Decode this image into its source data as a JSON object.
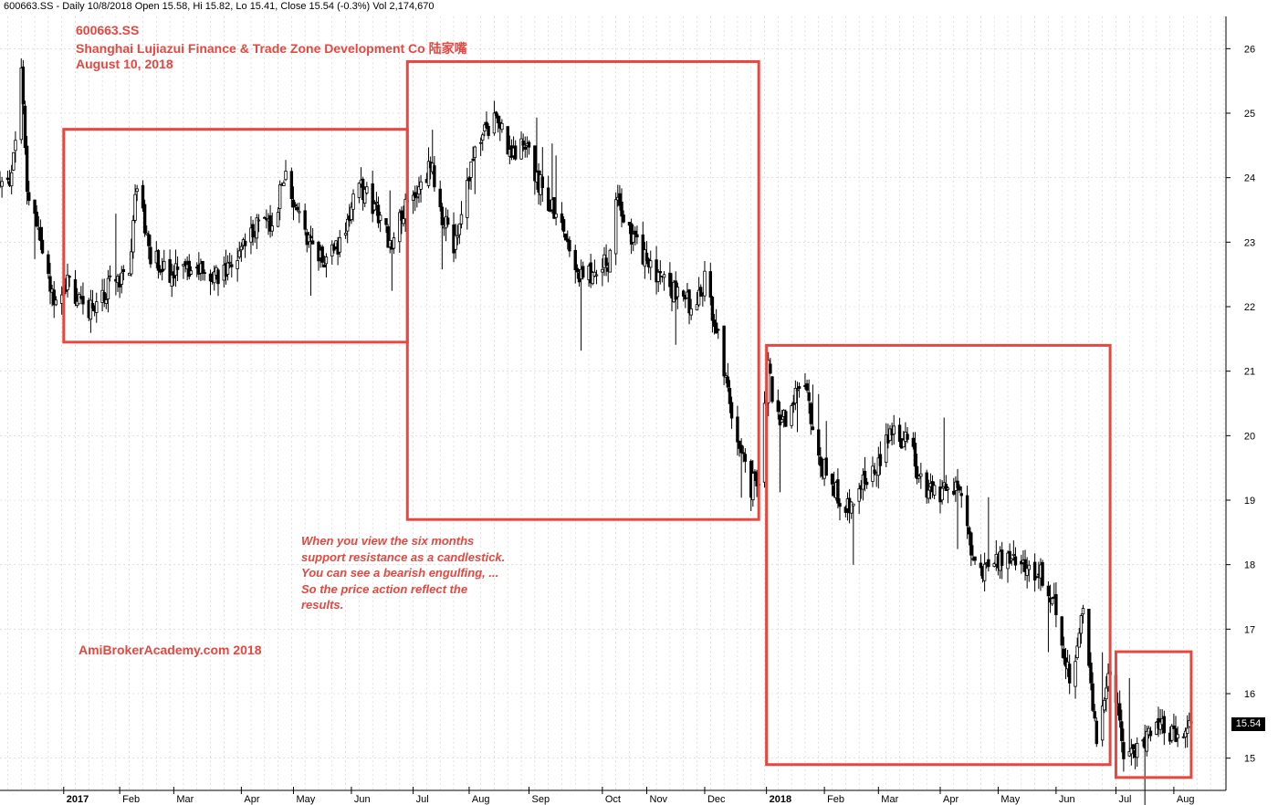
{
  "header": {
    "text": "600663.SS - Daily 10/8/2018 Open 15.58, Hi 15.82, Lo 15.41, Close 15.54 (-0.3%) Vol 2,174,670"
  },
  "overlay": {
    "ticker": "600663.SS",
    "company": "Shanghai Lujiazui Finance & Trade Zone Development Co  陆家嘴",
    "date": "August 10, 2018",
    "watermark": "AmiBrokerAcademy.com  2018",
    "note_lines": [
      "When you view the six months",
      "support resistance as a candlestick.",
      "You can see a bearish engulfing, ...",
      "So the price action reflect the",
      "results."
    ],
    "price_tag": "15.54"
  },
  "colors": {
    "annotation": "#e8463f",
    "candle": "#000000",
    "grid": "#cfcfcf",
    "background": "#ffffff"
  },
  "chart_data": {
    "type": "candlestick",
    "x_range": [
      "2016-12-01",
      "2018-08-28"
    ],
    "y_range": [
      14.5,
      26.5
    ],
    "y_ticks": [
      15,
      16,
      17,
      18,
      19,
      20,
      21,
      22,
      23,
      24,
      25,
      26
    ],
    "y_axis_position": "right",
    "grid": true,
    "x_tick_labels": [
      {
        "label": "2017",
        "date": "2017-01-03",
        "bold": true
      },
      {
        "label": "Feb",
        "date": "2017-02-01"
      },
      {
        "label": "Mar",
        "date": "2017-03-01"
      },
      {
        "label": "Apr",
        "date": "2017-04-05"
      },
      {
        "label": "May",
        "date": "2017-05-02"
      },
      {
        "label": "Jun",
        "date": "2017-06-01"
      },
      {
        "label": "Jul",
        "date": "2017-07-03"
      },
      {
        "label": "Aug",
        "date": "2017-08-01"
      },
      {
        "label": "Sep",
        "date": "2017-09-01"
      },
      {
        "label": "Oct",
        "date": "2017-10-09"
      },
      {
        "label": "Nov",
        "date": "2017-11-01"
      },
      {
        "label": "Dec",
        "date": "2017-12-01"
      },
      {
        "label": "2018",
        "date": "2018-01-02",
        "bold": true
      },
      {
        "label": "Feb",
        "date": "2018-02-01"
      },
      {
        "label": "Mar",
        "date": "2018-03-01"
      },
      {
        "label": "Apr",
        "date": "2018-04-02"
      },
      {
        "label": "May",
        "date": "2018-05-02"
      },
      {
        "label": "Jun",
        "date": "2018-06-01"
      },
      {
        "label": "Jul",
        "date": "2018-07-02"
      },
      {
        "label": "Aug",
        "date": "2018-08-01"
      }
    ],
    "last_close": 15.54,
    "key_points": [
      {
        "date": "2016-12-01",
        "close": 23.85
      },
      {
        "date": "2016-12-06",
        "close": 23.85
      },
      {
        "date": "2016-12-12",
        "close": 25.6
      },
      {
        "date": "2016-12-15",
        "close": 23.9
      },
      {
        "date": "2016-12-22",
        "close": 22.9
      },
      {
        "date": "2016-12-29",
        "close": 22.2
      },
      {
        "date": "2017-01-06",
        "close": 22.4
      },
      {
        "date": "2017-01-13",
        "close": 21.9
      },
      {
        "date": "2017-01-20",
        "close": 22.1
      },
      {
        "date": "2017-01-26",
        "close": 22.3
      },
      {
        "date": "2017-02-06",
        "close": 22.5
      },
      {
        "date": "2017-02-10",
        "close": 24.0
      },
      {
        "date": "2017-02-17",
        "close": 22.8
      },
      {
        "date": "2017-02-28",
        "close": 22.5
      },
      {
        "date": "2017-03-10",
        "close": 22.6
      },
      {
        "date": "2017-03-20",
        "close": 22.4
      },
      {
        "date": "2017-03-31",
        "close": 22.6
      },
      {
        "date": "2017-04-14",
        "close": 23.3
      },
      {
        "date": "2017-04-21",
        "close": 23.2
      },
      {
        "date": "2017-04-28",
        "close": 24.2
      },
      {
        "date": "2017-05-05",
        "close": 23.3
      },
      {
        "date": "2017-05-15",
        "close": 22.7
      },
      {
        "date": "2017-05-26",
        "close": 22.9
      },
      {
        "date": "2017-06-05",
        "close": 23.9
      },
      {
        "date": "2017-06-15",
        "close": 23.4
      },
      {
        "date": "2017-06-22",
        "close": 22.9
      },
      {
        "date": "2017-06-30",
        "close": 23.7
      },
      {
        "date": "2017-07-07",
        "close": 23.8
      },
      {
        "date": "2017-07-12",
        "close": 24.2
      },
      {
        "date": "2017-07-18",
        "close": 23.4
      },
      {
        "date": "2017-07-24",
        "close": 22.9
      },
      {
        "date": "2017-07-31",
        "close": 24.0
      },
      {
        "date": "2017-08-07",
        "close": 24.6
      },
      {
        "date": "2017-08-14",
        "close": 24.9
      },
      {
        "date": "2017-08-21",
        "close": 24.5
      },
      {
        "date": "2017-08-31",
        "close": 24.4
      },
      {
        "date": "2017-09-08",
        "close": 23.8
      },
      {
        "date": "2017-09-18",
        "close": 23.2
      },
      {
        "date": "2017-09-29",
        "close": 22.4
      },
      {
        "date": "2017-10-12",
        "close": 22.7
      },
      {
        "date": "2017-10-16",
        "close": 23.7
      },
      {
        "date": "2017-10-24",
        "close": 23.1
      },
      {
        "date": "2017-11-03",
        "close": 22.6
      },
      {
        "date": "2017-11-14",
        "close": 22.3
      },
      {
        "date": "2017-11-24",
        "close": 22.0
      },
      {
        "date": "2017-12-01",
        "close": 22.4
      },
      {
        "date": "2017-12-06",
        "close": 21.8
      },
      {
        "date": "2017-12-12",
        "close": 20.8
      },
      {
        "date": "2017-12-18",
        "close": 19.9
      },
      {
        "date": "2017-12-25",
        "close": 19.2
      },
      {
        "date": "2017-12-29",
        "close": 19.4
      },
      {
        "date": "2018-01-03",
        "close": 21.0
      },
      {
        "date": "2018-01-09",
        "close": 20.1
      },
      {
        "date": "2018-01-16",
        "close": 20.6
      },
      {
        "date": "2018-01-23",
        "close": 20.6
      },
      {
        "date": "2018-01-30",
        "close": 19.6
      },
      {
        "date": "2018-02-07",
        "close": 19.1
      },
      {
        "date": "2018-02-12",
        "close": 18.9
      },
      {
        "date": "2018-02-26",
        "close": 19.4
      },
      {
        "date": "2018-03-07",
        "close": 20.0
      },
      {
        "date": "2018-03-16",
        "close": 19.9
      },
      {
        "date": "2018-03-26",
        "close": 19.1
      },
      {
        "date": "2018-04-04",
        "close": 19.1
      },
      {
        "date": "2018-04-12",
        "close": 19.2
      },
      {
        "date": "2018-04-20",
        "close": 18.0
      },
      {
        "date": "2018-04-27",
        "close": 17.9
      },
      {
        "date": "2018-05-07",
        "close": 18.2
      },
      {
        "date": "2018-05-16",
        "close": 18.0
      },
      {
        "date": "2018-05-25",
        "close": 17.8
      },
      {
        "date": "2018-06-01",
        "close": 17.3
      },
      {
        "date": "2018-06-08",
        "close": 16.2
      },
      {
        "date": "2018-06-15",
        "close": 17.2
      },
      {
        "date": "2018-06-22",
        "close": 15.3
      },
      {
        "date": "2018-06-29",
        "close": 16.5
      },
      {
        "date": "2018-07-06",
        "close": 15.1
      },
      {
        "date": "2018-07-13",
        "close": 15.2
      },
      {
        "date": "2018-07-20",
        "close": 15.4
      },
      {
        "date": "2018-07-27",
        "close": 15.5
      },
      {
        "date": "2018-08-03",
        "close": 15.3
      },
      {
        "date": "2018-08-10",
        "close": 15.54
      }
    ],
    "annotation_boxes": [
      {
        "start": "2017-01-03",
        "end": "2017-06-30",
        "high": 24.75,
        "low": 21.45
      },
      {
        "start": "2017-06-30",
        "end": "2017-12-29",
        "high": 25.8,
        "low": 18.7
      },
      {
        "start": "2018-01-02",
        "end": "2018-06-29",
        "high": 21.4,
        "low": 14.9
      },
      {
        "start": "2018-07-02",
        "end": "2018-08-10",
        "high": 16.65,
        "low": 14.7
      }
    ]
  }
}
